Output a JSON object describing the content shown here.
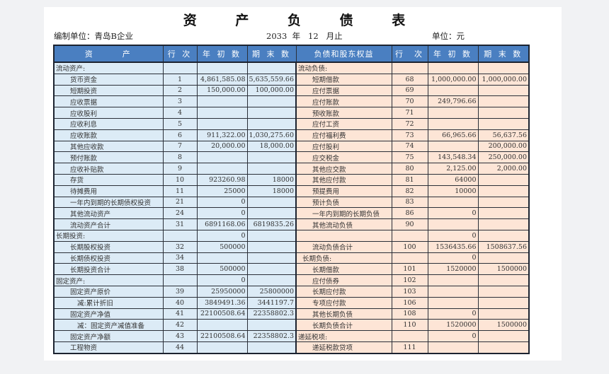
{
  "title": "资 产 负 债 表",
  "company": "编制单位：青岛B企业",
  "period": "2033  年   12   月止",
  "unit": "单位：元",
  "headers": {
    "asset": "资      产",
    "line": "行 次",
    "begin": "年 初 数",
    "end": "期 末 数",
    "liab": "负债和股东权益",
    "line2": "行  次",
    "begin2": "年 初 数",
    "end2": "期 末 数"
  },
  "colors": {
    "header": "#4a7fc1",
    "asset_bg": "#dcebf6",
    "liab_bg": "#fde5d6"
  },
  "rows": [
    {
      "a": [
        "流动资产:",
        "",
        "",
        ""
      ],
      "ai": 0,
      "b": [
        "流动负债:",
        "",
        "",
        ""
      ],
      "bi": 0
    },
    {
      "a": [
        "货币资金",
        "1",
        "4,861,585.08",
        "5,635,559.66"
      ],
      "ai": 1,
      "b": [
        "短期借款",
        "68",
        "1,000,000.00",
        "1,000,000.00"
      ],
      "bi": 1
    },
    {
      "a": [
        "短期投资",
        "2",
        "150,000.00",
        "100,000.00"
      ],
      "ai": 1,
      "b": [
        "应付票据",
        "69",
        "",
        ""
      ],
      "bi": 1
    },
    {
      "a": [
        "应收票据",
        "3",
        "",
        ""
      ],
      "ai": 1,
      "b": [
        "应付账款",
        "70",
        "249,796.66",
        ""
      ],
      "bi": 1
    },
    {
      "a": [
        "应收股利",
        "4",
        "",
        ""
      ],
      "ai": 1,
      "b": [
        "预收账款",
        "71",
        "",
        ""
      ],
      "bi": 1
    },
    {
      "a": [
        "应收利息",
        "5",
        "",
        ""
      ],
      "ai": 1,
      "b": [
        "应付工资",
        "72",
        "",
        ""
      ],
      "bi": 1
    },
    {
      "a": [
        "应收账款",
        "6",
        "911,322.00",
        "1,030,275.60"
      ],
      "ai": 1,
      "b": [
        "应付福利费",
        "73",
        "66,965.66",
        "56,637.56"
      ],
      "bi": 1
    },
    {
      "a": [
        "其他应收款",
        "7",
        "20,000.00",
        "18,000.00"
      ],
      "ai": 1,
      "b": [
        "应付股利",
        "74",
        "",
        "200,000.00"
      ],
      "bi": 1
    },
    {
      "a": [
        "预付账款",
        "8",
        "",
        ""
      ],
      "ai": 1,
      "b": [
        "应交税金",
        "75",
        "143,548.34",
        "250,000.00"
      ],
      "bi": 1
    },
    {
      "a": [
        "应收补贴款",
        "9",
        "",
        ""
      ],
      "ai": 1,
      "b": [
        "其他应交款",
        "80",
        "2,125.00",
        "2,000.00"
      ],
      "bi": 1
    },
    {
      "a": [
        "存货",
        "10",
        "923260.98",
        "18000"
      ],
      "ai": 1,
      "b": [
        "其他应付款",
        "81",
        "64000",
        ""
      ],
      "bi": 1
    },
    {
      "a": [
        "待摊费用",
        "11",
        "25000",
        "18000"
      ],
      "ai": 1,
      "b": [
        "预提费用",
        "82",
        "10000",
        ""
      ],
      "bi": 1
    },
    {
      "a": [
        "一年内到期的长期债权投资",
        "21",
        "0",
        ""
      ],
      "ai": 1,
      "b": [
        "预计负债",
        "83",
        "",
        ""
      ],
      "bi": 1
    },
    {
      "a": [
        "其他流动资产",
        "24",
        "0",
        ""
      ],
      "ai": 1,
      "b": [
        "一年内到期的长期负债",
        "86",
        "0",
        ""
      ],
      "bi": 1
    },
    {
      "a": [
        "流动资产合计",
        "31",
        "6891168.06",
        "6819835.26"
      ],
      "ai": 1,
      "b": [
        "其他流动负债",
        "90",
        "",
        ""
      ],
      "bi": 1
    },
    {
      "a": [
        "长期投资:",
        "",
        "0",
        ""
      ],
      "ai": 0,
      "b": [
        "",
        "",
        "0",
        ""
      ],
      "bi": 0
    },
    {
      "a": [
        "长期股权投资",
        "32",
        "500000",
        ""
      ],
      "ai": 1,
      "b": [
        "流动负债合计",
        "100",
        "1536435.66",
        "1508637.56"
      ],
      "bi": 1
    },
    {
      "a": [
        "长期债权投资",
        "34",
        "",
        ""
      ],
      "ai": 1,
      "b": [
        "长期负债:",
        "",
        "0",
        ""
      ],
      "bi": 0.3
    },
    {
      "a": [
        "长期投资合计",
        "38",
        "500000",
        ""
      ],
      "ai": 1,
      "b": [
        "长期借款",
        "101",
        "1520000",
        "1500000"
      ],
      "bi": 1
    },
    {
      "a": [
        "固定资产:",
        "",
        "0",
        ""
      ],
      "ai": 0,
      "b": [
        "应付债券",
        "102",
        "",
        ""
      ],
      "bi": 1
    },
    {
      "a": [
        "固定资产原价",
        "39",
        "25950000",
        "25800000"
      ],
      "ai": 1,
      "b": [
        "长期应付款",
        "103",
        "",
        ""
      ],
      "bi": 1
    },
    {
      "a": [
        "减:累计折旧",
        "40",
        "3849491.36",
        "3441197.7"
      ],
      "ai": 1.5,
      "b": [
        "专项应付款",
        "106",
        "",
        ""
      ],
      "bi": 1
    },
    {
      "a": [
        "固定资产净值",
        "41",
        "22100508.64",
        "22358802.3"
      ],
      "ai": 1,
      "b": [
        "其他长期负债",
        "108",
        "0",
        ""
      ],
      "bi": 1
    },
    {
      "a": [
        "减：固定资产减值准备",
        "42",
        "",
        ""
      ],
      "ai": 1.5,
      "b": [
        "长期负债合计",
        "110",
        "1520000",
        "1500000"
      ],
      "bi": 1
    },
    {
      "a": [
        "固定资产净额",
        "43",
        "22100508.64",
        "22358802.3"
      ],
      "ai": 1,
      "b": [
        "递延税项:",
        "",
        "0",
        ""
      ],
      "bi": 0
    },
    {
      "a": [
        "工程物资",
        "44",
        "",
        ""
      ],
      "ai": 1,
      "b": [
        "递延税款贷项",
        "111",
        "",
        ""
      ],
      "bi": 1
    }
  ]
}
